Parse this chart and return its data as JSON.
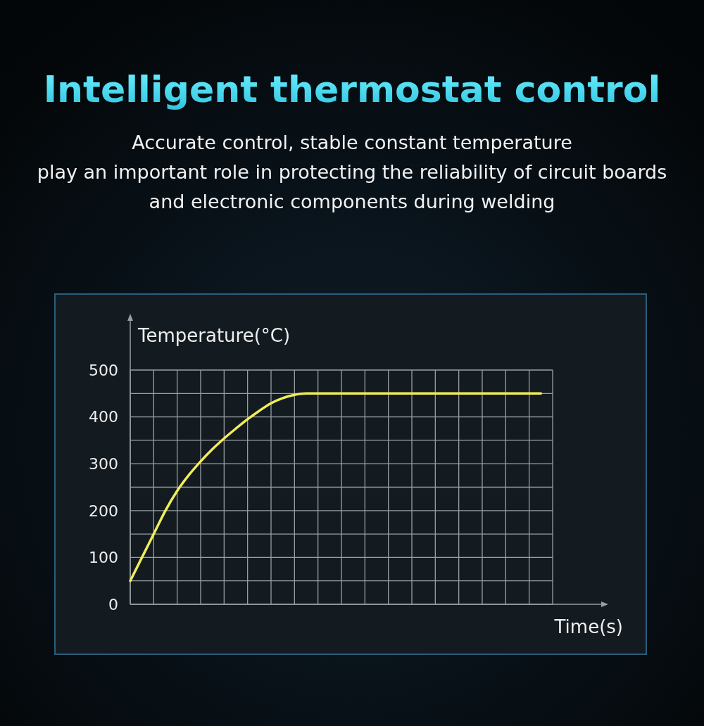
{
  "chart_data": {
    "type": "line",
    "title": "Intelligent thermostat control",
    "subtitle": "Accurate control, stable constant temperature\nplay an important role in protecting the reliability of circuit boards\nand electronic components during welding",
    "xlabel": "Time(s)",
    "ylabel": "Temperature(°C)",
    "categories": [
      null,
      null,
      null,
      null,
      null,
      null,
      null,
      null,
      null,
      null,
      null,
      null,
      null,
      null,
      null,
      null,
      null,
      null,
      null,
      null,
      null,
      null,
      null,
      null,
      null,
      null,
      null,
      null,
      null,
      null,
      null,
      null,
      null,
      null,
      null,
      null
    ],
    "series": [
      {
        "color": "#f2ec5a",
        "values": [
          50,
          100,
          150,
          200,
          242,
          276,
          305,
          331,
          354,
          375,
          395,
          413,
          429,
          440,
          447,
          450,
          450,
          450,
          450,
          450,
          450,
          450,
          450,
          450,
          450,
          450,
          450,
          450,
          450,
          450,
          450,
          450,
          450,
          450,
          450,
          450
        ]
      }
    ],
    "ylim": [
      0,
      500
    ],
    "yticks": [
      0,
      {
        "value": 50,
        "label": null
      },
      100,
      {
        "value": 150,
        "label": null
      },
      200,
      {
        "value": 250,
        "label": null
      },
      300,
      {
        "value": 350,
        "label": null
      },
      400,
      {
        "value": 450,
        "label": null
      },
      500
    ],
    "grid": true,
    "marker": "none",
    "line_style": "solid"
  }
}
